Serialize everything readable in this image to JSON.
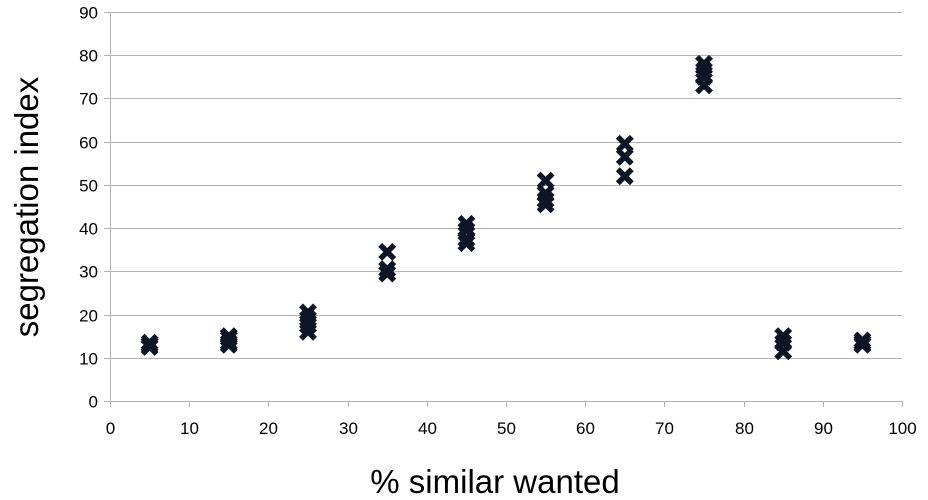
{
  "chart_data": {
    "type": "scatter",
    "title": "",
    "xlabel": "% similar wanted",
    "ylabel": "segregation index",
    "xlim": [
      0,
      100
    ],
    "ylim": [
      0,
      90
    ],
    "x_ticks": [
      "0",
      "10",
      "20",
      "30",
      "40",
      "50",
      "60",
      "70",
      "80",
      "90",
      "100"
    ],
    "y_ticks": [
      "0",
      "10",
      "20",
      "30",
      "40",
      "50",
      "60",
      "70",
      "80",
      "90"
    ],
    "grid": "horizontal",
    "legend": "none",
    "marker": "x",
    "marker_color": "#0d1526",
    "grid_color": "#b3b3b3",
    "series": [
      {
        "points": [
          [
            5,
            13.5
          ],
          [
            5,
            13
          ],
          [
            5,
            12.5
          ],
          [
            15,
            15
          ],
          [
            15,
            14.5
          ],
          [
            15,
            13.5
          ],
          [
            15,
            13
          ],
          [
            25,
            20.5
          ],
          [
            25,
            19
          ],
          [
            25,
            17.5
          ],
          [
            25,
            16
          ],
          [
            35,
            34.5
          ],
          [
            35,
            30.5
          ],
          [
            35,
            29.5
          ],
          [
            45,
            41
          ],
          [
            45,
            39.5
          ],
          [
            45,
            37.5
          ],
          [
            45,
            36.5
          ],
          [
            55,
            51
          ],
          [
            55,
            48
          ],
          [
            55,
            46.5
          ],
          [
            55,
            45.5
          ],
          [
            65,
            59.5
          ],
          [
            65,
            56.5
          ],
          [
            65,
            52
          ],
          [
            75,
            78
          ],
          [
            75,
            76.5
          ],
          [
            75,
            75
          ],
          [
            75,
            73
          ],
          [
            85,
            15
          ],
          [
            85,
            13.5
          ],
          [
            85,
            11.5
          ],
          [
            95,
            14
          ],
          [
            95,
            13.5
          ],
          [
            95,
            13
          ]
        ]
      }
    ]
  }
}
